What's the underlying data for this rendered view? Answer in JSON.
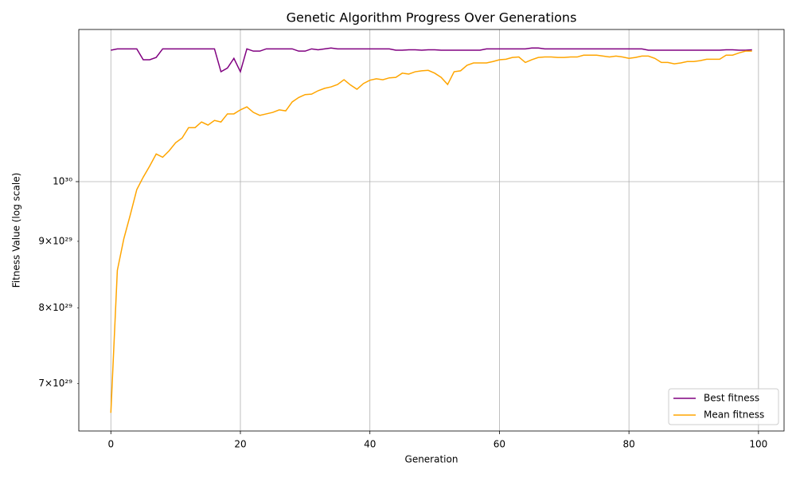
{
  "chart_data": {
    "type": "line",
    "title": "Genetic Algorithm Progress Over Generations",
    "xlabel": "Generation",
    "ylabel": "Fitness Value (log scale)",
    "yscale": "log",
    "grid": true,
    "legend": "lower right",
    "xlim": [
      -4.95,
      103.95
    ],
    "ylim": [
      6.44e+29,
      1.308e+30
    ],
    "xticks": [
      0,
      20,
      40,
      60,
      80,
      100
    ],
    "yticks": [
      {
        "value": 1e+30,
        "label": "10³⁰"
      }
    ],
    "yminorticks": [
      {
        "value": 7e+29,
        "label": "7×10²⁹"
      },
      {
        "value": 8e+29,
        "label": "8×10²⁹"
      },
      {
        "value": 9e+29,
        "label": "9×10²⁹"
      }
    ],
    "x": [
      0,
      1,
      2,
      3,
      4,
      5,
      6,
      7,
      8,
      9,
      10,
      11,
      12,
      13,
      14,
      15,
      16,
      17,
      18,
      19,
      20,
      21,
      22,
      23,
      24,
      25,
      26,
      27,
      28,
      29,
      30,
      31,
      32,
      33,
      34,
      35,
      36,
      37,
      38,
      39,
      40,
      41,
      42,
      43,
      44,
      45,
      46,
      47,
      48,
      49,
      50,
      51,
      52,
      53,
      54,
      55,
      56,
      57,
      58,
      59,
      60,
      61,
      62,
      63,
      64,
      65,
      66,
      67,
      68,
      69,
      70,
      71,
      72,
      73,
      74,
      75,
      76,
      77,
      78,
      79,
      80,
      81,
      82,
      83,
      84,
      85,
      86,
      87,
      88,
      89,
      90,
      91,
      92,
      93,
      94,
      95,
      96,
      97,
      98,
      99
    ],
    "series": [
      {
        "name": "Best fitness",
        "color": "#800080",
        "values": [
          1.261e+30,
          1.264e+30,
          1.264e+30,
          1.264e+30,
          1.264e+30,
          1.24e+30,
          1.24e+30,
          1.245e+30,
          1.264e+30,
          1.264e+30,
          1.264e+30,
          1.264e+30,
          1.264e+30,
          1.264e+30,
          1.264e+30,
          1.264e+30,
          1.264e+30,
          1.214e+30,
          1.222e+30,
          1.243e+30,
          1.214e+30,
          1.264e+30,
          1.259e+30,
          1.259e+30,
          1.264e+30,
          1.264e+30,
          1.264e+30,
          1.264e+30,
          1.264e+30,
          1.259e+30,
          1.259e+30,
          1.264e+30,
          1.262e+30,
          1.264e+30,
          1.266e+30,
          1.264e+30,
          1.264e+30,
          1.264e+30,
          1.264e+30,
          1.264e+30,
          1.264e+30,
          1.264e+30,
          1.264e+30,
          1.264e+30,
          1.261e+30,
          1.261e+30,
          1.262e+30,
          1.262e+30,
          1.261e+30,
          1.262e+30,
          1.262e+30,
          1.261e+30,
          1.261e+30,
          1.261e+30,
          1.261e+30,
          1.261e+30,
          1.261e+30,
          1.261e+30,
          1.264e+30,
          1.264e+30,
          1.264e+30,
          1.264e+30,
          1.264e+30,
          1.264e+30,
          1.264e+30,
          1.266e+30,
          1.266e+30,
          1.264e+30,
          1.264e+30,
          1.264e+30,
          1.264e+30,
          1.264e+30,
          1.264e+30,
          1.264e+30,
          1.264e+30,
          1.264e+30,
          1.264e+30,
          1.264e+30,
          1.264e+30,
          1.264e+30,
          1.264e+30,
          1.264e+30,
          1.264e+30,
          1.261e+30,
          1.261e+30,
          1.261e+30,
          1.261e+30,
          1.261e+30,
          1.261e+30,
          1.261e+30,
          1.261e+30,
          1.261e+30,
          1.261e+30,
          1.261e+30,
          1.261e+30,
          1.262e+30,
          1.262e+30,
          1.261e+30,
          1.261e+30,
          1.262e+30
        ]
      },
      {
        "name": "Mean fitness",
        "color": "#ffa500",
        "values": [
          6.65e+29,
          8.55e+29,
          9.04e+29,
          9.43e+29,
          9.86e+29,
          1.008e+30,
          1.028e+30,
          1.05e+30,
          1.044e+30,
          1.056e+30,
          1.071e+30,
          1.08e+30,
          1.1e+30,
          1.1e+30,
          1.111e+30,
          1.105e+30,
          1.114e+30,
          1.111e+30,
          1.127e+30,
          1.127e+30,
          1.135e+30,
          1.141e+30,
          1.13e+30,
          1.124e+30,
          1.127e+30,
          1.13e+30,
          1.135e+30,
          1.133e+30,
          1.151e+30,
          1.16e+30,
          1.166e+30,
          1.167e+30,
          1.174e+30,
          1.179e+30,
          1.182e+30,
          1.187e+30,
          1.197e+30,
          1.186e+30,
          1.177e+30,
          1.189e+30,
          1.196e+30,
          1.199e+30,
          1.197e+30,
          1.201e+30,
          1.202e+30,
          1.211e+30,
          1.209e+30,
          1.214e+30,
          1.216e+30,
          1.217e+30,
          1.211e+30,
          1.202e+30,
          1.187e+30,
          1.214e+30,
          1.216e+30,
          1.228e+30,
          1.233e+30,
          1.233e+30,
          1.233e+30,
          1.236e+30,
          1.24e+30,
          1.241e+30,
          1.245e+30,
          1.246e+30,
          1.234e+30,
          1.24e+30,
          1.245e+30,
          1.246e+30,
          1.246e+30,
          1.245e+30,
          1.245e+30,
          1.246e+30,
          1.246e+30,
          1.25e+30,
          1.25e+30,
          1.25e+30,
          1.248e+30,
          1.246e+30,
          1.248e+30,
          1.246e+30,
          1.243e+30,
          1.245e+30,
          1.248e+30,
          1.248e+30,
          1.243e+30,
          1.234e+30,
          1.234e+30,
          1.231e+30,
          1.233e+30,
          1.236e+30,
          1.236e+30,
          1.238e+30,
          1.241e+30,
          1.241e+30,
          1.241e+30,
          1.25e+30,
          1.25e+30,
          1.255e+30,
          1.259e+30,
          1.259e+30
        ]
      }
    ]
  }
}
